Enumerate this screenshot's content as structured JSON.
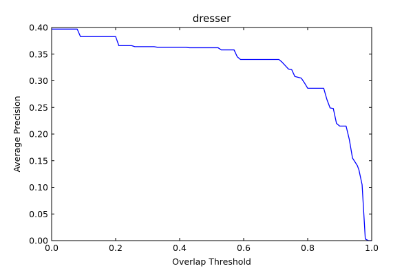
{
  "chart_data": {
    "type": "line",
    "title": "dresser",
    "xlabel": "Overlap Threshold",
    "ylabel": "Average Precision",
    "xlim": [
      0.0,
      1.0
    ],
    "ylim": [
      0.0,
      0.4
    ],
    "grid": false,
    "x_ticks": [
      "0.0",
      "0.2",
      "0.4",
      "0.6",
      "0.8",
      "1.0"
    ],
    "y_ticks": [
      "0.00",
      "0.05",
      "0.10",
      "0.15",
      "0.20",
      "0.25",
      "0.30",
      "0.35",
      "0.40"
    ],
    "line_color": "#0000ff",
    "series": [
      {
        "x": [
          0.0,
          0.08,
          0.09,
          0.2,
          0.21,
          0.25,
          0.26,
          0.32,
          0.33,
          0.42,
          0.43,
          0.52,
          0.53,
          0.57,
          0.58,
          0.59,
          0.71,
          0.72,
          0.74,
          0.75,
          0.76,
          0.78,
          0.79,
          0.8,
          0.85,
          0.86,
          0.87,
          0.88,
          0.89,
          0.9,
          0.92,
          0.93,
          0.94,
          0.955,
          0.96,
          0.97,
          0.98,
          0.99,
          1.0
        ],
        "values": [
          0.397,
          0.397,
          0.383,
          0.383,
          0.366,
          0.366,
          0.364,
          0.364,
          0.363,
          0.363,
          0.362,
          0.362,
          0.358,
          0.358,
          0.345,
          0.34,
          0.34,
          0.335,
          0.322,
          0.321,
          0.308,
          0.305,
          0.296,
          0.286,
          0.286,
          0.265,
          0.249,
          0.248,
          0.22,
          0.215,
          0.215,
          0.19,
          0.155,
          0.141,
          0.133,
          0.105,
          0.003,
          0.0,
          0.0
        ]
      }
    ]
  }
}
